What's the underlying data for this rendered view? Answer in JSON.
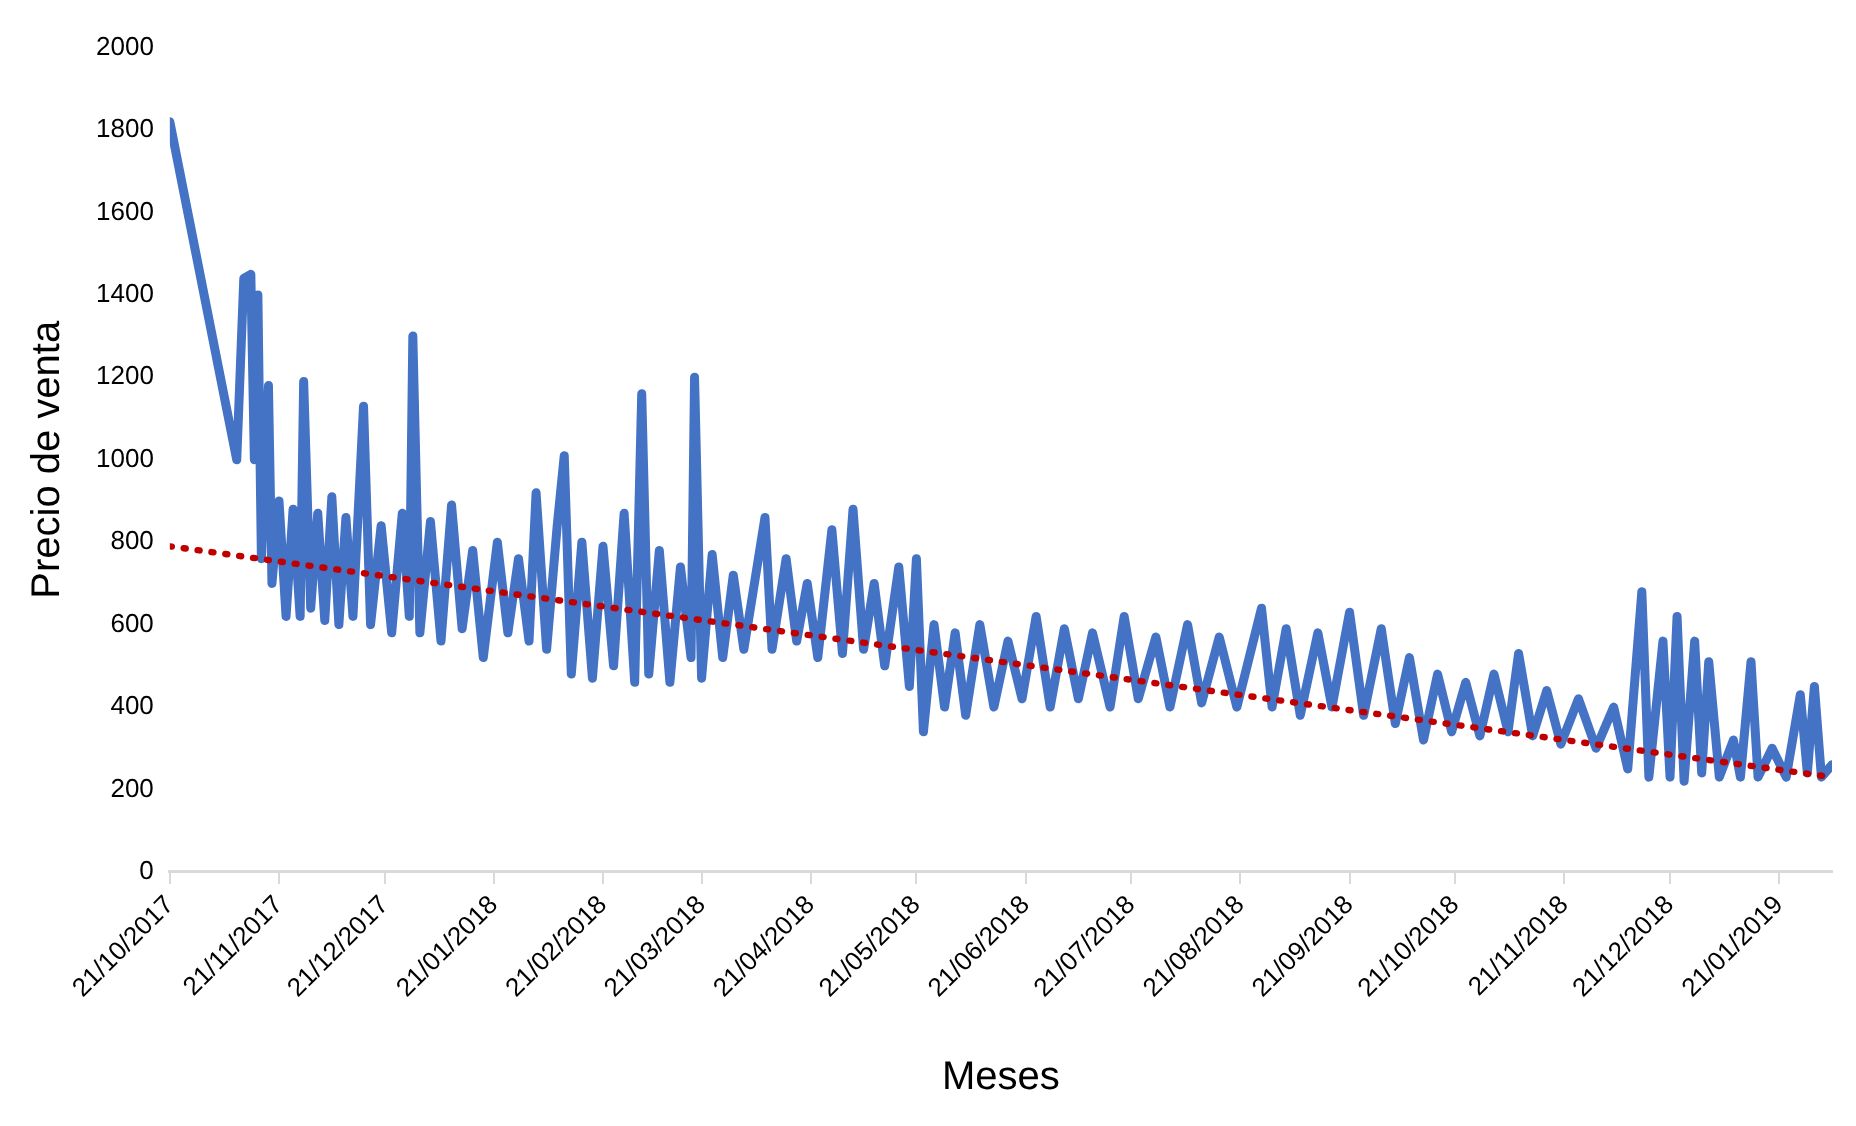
{
  "chart_data": {
    "type": "line",
    "xlabel": "Meses",
    "ylabel": "Precio de venta",
    "xlim": [
      "2017-10-21",
      "2019-02-05"
    ],
    "xticks": [
      {
        "value": "2017-10-21",
        "label": "21/10/2017"
      },
      {
        "value": "2017-11-21",
        "label": "21/11/2017"
      },
      {
        "value": "2017-12-21",
        "label": "21/12/2017"
      },
      {
        "value": "2018-01-21",
        "label": "21/01/2018"
      },
      {
        "value": "2018-02-21",
        "label": "21/02/2018"
      },
      {
        "value": "2018-03-21",
        "label": "21/03/2018"
      },
      {
        "value": "2018-04-21",
        "label": "21/04/2018"
      },
      {
        "value": "2018-05-21",
        "label": "21/05/2018"
      },
      {
        "value": "2018-06-21",
        "label": "21/06/2018"
      },
      {
        "value": "2018-07-21",
        "label": "21/07/2018"
      },
      {
        "value": "2018-08-21",
        "label": "21/08/2018"
      },
      {
        "value": "2018-09-21",
        "label": "21/09/2018"
      },
      {
        "value": "2018-10-21",
        "label": "21/10/2018"
      },
      {
        "value": "2018-11-21",
        "label": "21/11/2018"
      },
      {
        "value": "2018-12-21",
        "label": "21/12/2018"
      },
      {
        "value": "2019-01-21",
        "label": "21/01/2019"
      }
    ],
    "ylim": [
      0,
      2000
    ],
    "yticks": [
      0,
      200,
      400,
      600,
      800,
      1000,
      1200,
      1400,
      1600,
      1800,
      2000
    ],
    "grid": false,
    "legend": false,
    "marker": "none",
    "series": [
      {
        "color": "#4472c4",
        "line_style": "solid",
        "x": [
          "2017-10-21",
          "2017-11-09",
          "2017-11-11",
          "2017-11-13",
          "2017-11-14",
          "2017-11-15",
          "2017-11-16",
          "2017-11-18",
          "2017-11-19",
          "2017-11-21",
          "2017-11-23",
          "2017-11-25",
          "2017-11-27",
          "2017-11-28",
          "2017-11-30",
          "2017-12-02",
          "2017-12-04",
          "2017-12-06",
          "2017-12-08",
          "2017-12-10",
          "2017-12-12",
          "2017-12-15",
          "2017-12-17",
          "2017-12-20",
          "2017-12-23",
          "2017-12-26",
          "2017-12-28",
          "2017-12-29",
          "2017-12-31",
          "2018-01-03",
          "2018-01-06",
          "2018-01-09",
          "2018-01-12",
          "2018-01-15",
          "2018-01-18",
          "2018-01-22",
          "2018-01-25",
          "2018-01-28",
          "2018-01-31",
          "2018-02-02",
          "2018-02-05",
          "2018-02-08",
          "2018-02-10",
          "2018-02-12",
          "2018-02-15",
          "2018-02-18",
          "2018-02-21",
          "2018-02-24",
          "2018-02-27",
          "2018-03-02",
          "2018-03-04",
          "2018-03-06",
          "2018-03-09",
          "2018-03-12",
          "2018-03-15",
          "2018-03-18",
          "2018-03-19",
          "2018-03-21",
          "2018-03-24",
          "2018-03-27",
          "2018-03-30",
          "2018-04-02",
          "2018-04-05",
          "2018-04-08",
          "2018-04-10",
          "2018-04-14",
          "2018-04-17",
          "2018-04-20",
          "2018-04-23",
          "2018-04-27",
          "2018-04-30",
          "2018-05-03",
          "2018-05-06",
          "2018-05-09",
          "2018-05-12",
          "2018-05-16",
          "2018-05-19",
          "2018-05-21",
          "2018-05-23",
          "2018-05-26",
          "2018-05-29",
          "2018-06-01",
          "2018-06-04",
          "2018-06-08",
          "2018-06-12",
          "2018-06-16",
          "2018-06-20",
          "2018-06-24",
          "2018-06-28",
          "2018-07-02",
          "2018-07-06",
          "2018-07-10",
          "2018-07-15",
          "2018-07-19",
          "2018-07-23",
          "2018-07-28",
          "2018-08-01",
          "2018-08-06",
          "2018-08-10",
          "2018-08-15",
          "2018-08-20",
          "2018-08-27",
          "2018-08-30",
          "2018-09-03",
          "2018-09-07",
          "2018-09-12",
          "2018-09-16",
          "2018-09-21",
          "2018-09-25",
          "2018-09-30",
          "2018-10-04",
          "2018-10-08",
          "2018-10-12",
          "2018-10-16",
          "2018-10-20",
          "2018-10-24",
          "2018-10-28",
          "2018-11-01",
          "2018-11-05",
          "2018-11-08",
          "2018-11-12",
          "2018-11-16",
          "2018-11-20",
          "2018-11-25",
          "2018-11-30",
          "2018-12-05",
          "2018-12-09",
          "2018-12-13",
          "2018-12-15",
          "2018-12-19",
          "2018-12-21",
          "2018-12-23",
          "2018-12-25",
          "2018-12-28",
          "2018-12-30",
          "2019-01-01",
          "2019-01-04",
          "2019-01-08",
          "2019-01-10",
          "2019-01-13",
          "2019-01-15",
          "2019-01-19",
          "2019-01-23",
          "2019-01-27",
          "2019-01-29",
          "2019-01-31",
          "2019-02-02",
          "2019-02-05"
        ],
        "values": [
          1820,
          1000,
          1440,
          1450,
          1000,
          1400,
          760,
          1180,
          700,
          900,
          620,
          880,
          620,
          1190,
          640,
          870,
          610,
          910,
          600,
          860,
          620,
          1130,
          600,
          840,
          580,
          870,
          620,
          1300,
          580,
          850,
          560,
          890,
          590,
          780,
          520,
          800,
          580,
          760,
          560,
          920,
          540,
          840,
          1010,
          480,
          800,
          470,
          790,
          500,
          870,
          460,
          1160,
          480,
          780,
          460,
          740,
          520,
          1200,
          470,
          770,
          520,
          720,
          540,
          700,
          860,
          540,
          760,
          560,
          700,
          520,
          830,
          530,
          880,
          540,
          700,
          500,
          740,
          450,
          760,
          340,
          600,
          400,
          580,
          380,
          600,
          400,
          560,
          420,
          620,
          400,
          590,
          420,
          580,
          400,
          620,
          420,
          570,
          400,
          600,
          410,
          570,
          400,
          640,
          400,
          590,
          380,
          580,
          400,
          630,
          380,
          590,
          360,
          520,
          320,
          480,
          340,
          460,
          330,
          480,
          340,
          530,
          330,
          440,
          310,
          420,
          300,
          400,
          250,
          680,
          230,
          560,
          230,
          620,
          220,
          560,
          240,
          510,
          230,
          320,
          230,
          510,
          230,
          300,
          230,
          430,
          240,
          450,
          230,
          260
        ]
      },
      {
        "type": "line",
        "color": "#c00000",
        "line_style": "dotted",
        "x": [
          "2017-10-21",
          "2019-02-05"
        ],
        "values": [
          790,
          230
        ]
      }
    ]
  }
}
